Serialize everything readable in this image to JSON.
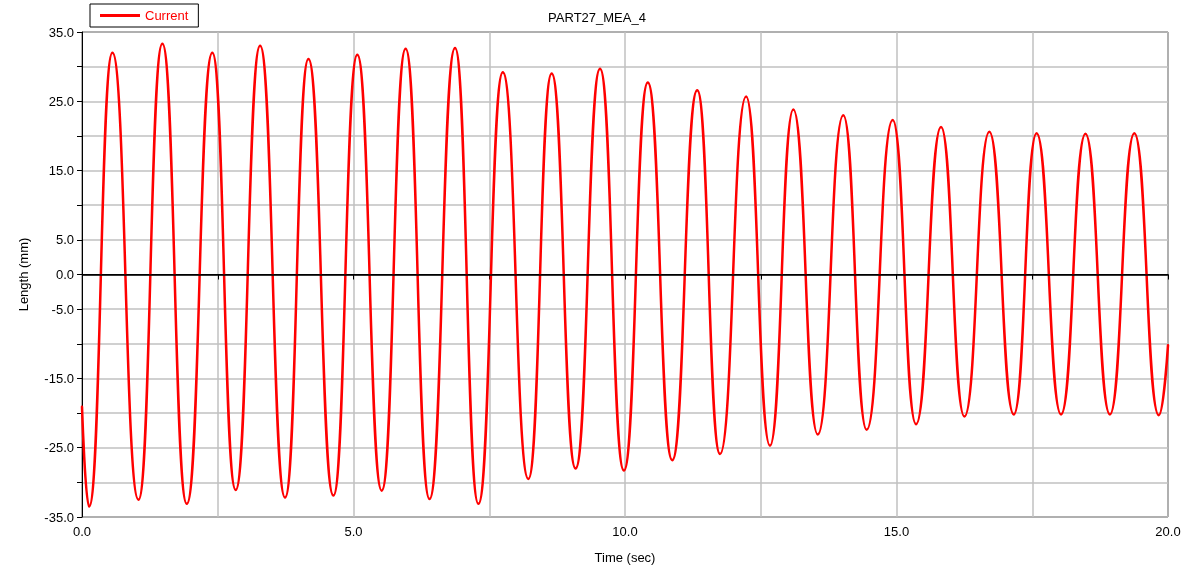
{
  "chart_data": {
    "type": "line",
    "title": "PART27_MEA_4",
    "xlabel": "Time (sec)",
    "ylabel": "Length (mm)",
    "xlim": [
      0,
      20
    ],
    "xticks": [
      {
        "value": 0,
        "label": "0.0"
      },
      {
        "value": 2.5,
        "label": null
      },
      {
        "value": 5,
        "label": "5.0"
      },
      {
        "value": 7.5,
        "label": null
      },
      {
        "value": 10,
        "label": "10.0"
      },
      {
        "value": 12.5,
        "label": null
      },
      {
        "value": 15,
        "label": "15.0"
      },
      {
        "value": 17.5,
        "label": null
      },
      {
        "value": 20,
        "label": "20.0"
      }
    ],
    "ylim": [
      -35,
      35
    ],
    "yticks": [
      {
        "value": -35,
        "label": "-35.0"
      },
      {
        "value": -30,
        "label": null
      },
      {
        "value": -25,
        "label": "-25.0"
      },
      {
        "value": -20,
        "label": null
      },
      {
        "value": -15,
        "label": "-15.0"
      },
      {
        "value": -10,
        "label": null
      },
      {
        "value": -5,
        "label": "-5.0"
      },
      {
        "value": 0,
        "label": "0.0"
      },
      {
        "value": 5,
        "label": "5.0"
      },
      {
        "value": 10,
        "label": null
      },
      {
        "value": 15,
        "label": "15.0"
      },
      {
        "value": 20,
        "label": null
      },
      {
        "value": 25,
        "label": "25.0"
      },
      {
        "value": 30,
        "label": null
      },
      {
        "value": 35,
        "label": "35.0"
      }
    ],
    "grid": true,
    "legend": "top left",
    "marker": "none",
    "line_style": "solid",
    "ref_lines": [
      {
        "axis": "y",
        "value": 0,
        "label": null,
        "color": "#000000"
      }
    ],
    "series": [
      {
        "name": "Current",
        "color": "#ff0000",
        "x": [
          0,
          0.13,
          0.56,
          1.04,
          1.48,
          1.93,
          2.4,
          2.83,
          3.28,
          3.74,
          4.17,
          4.63,
          5.07,
          5.52,
          5.96,
          6.4,
          6.87,
          7.3,
          7.75,
          8.22,
          8.65,
          9.09,
          9.54,
          9.98,
          10.42,
          10.87,
          11.33,
          11.75,
          12.23,
          12.67,
          13.1,
          13.55,
          14.02,
          14.45,
          14.93,
          15.36,
          15.82,
          16.25,
          16.71,
          17.16,
          17.58,
          18.03,
          18.48,
          18.93,
          19.38,
          19.83,
          20
        ],
        "values": [
          -19.1,
          -33.5,
          32,
          -32.5,
          33.3,
          -33.1,
          32,
          -31.1,
          33,
          -32.2,
          31.1,
          -31.9,
          31.7,
          -31.2,
          32.6,
          -32.4,
          32.7,
          -33.1,
          29.2,
          -29.5,
          29,
          -28,
          29.7,
          -28.3,
          27.7,
          -26.8,
          26.6,
          -25.9,
          25.7,
          -24.7,
          23.8,
          -23.1,
          23,
          -22.4,
          22.3,
          -21.6,
          21.3,
          -20.5,
          20.6,
          -20.2,
          20.4,
          -20.2,
          20.3,
          -20.2,
          20.4,
          -20.3,
          -10.2
        ]
      }
    ]
  }
}
